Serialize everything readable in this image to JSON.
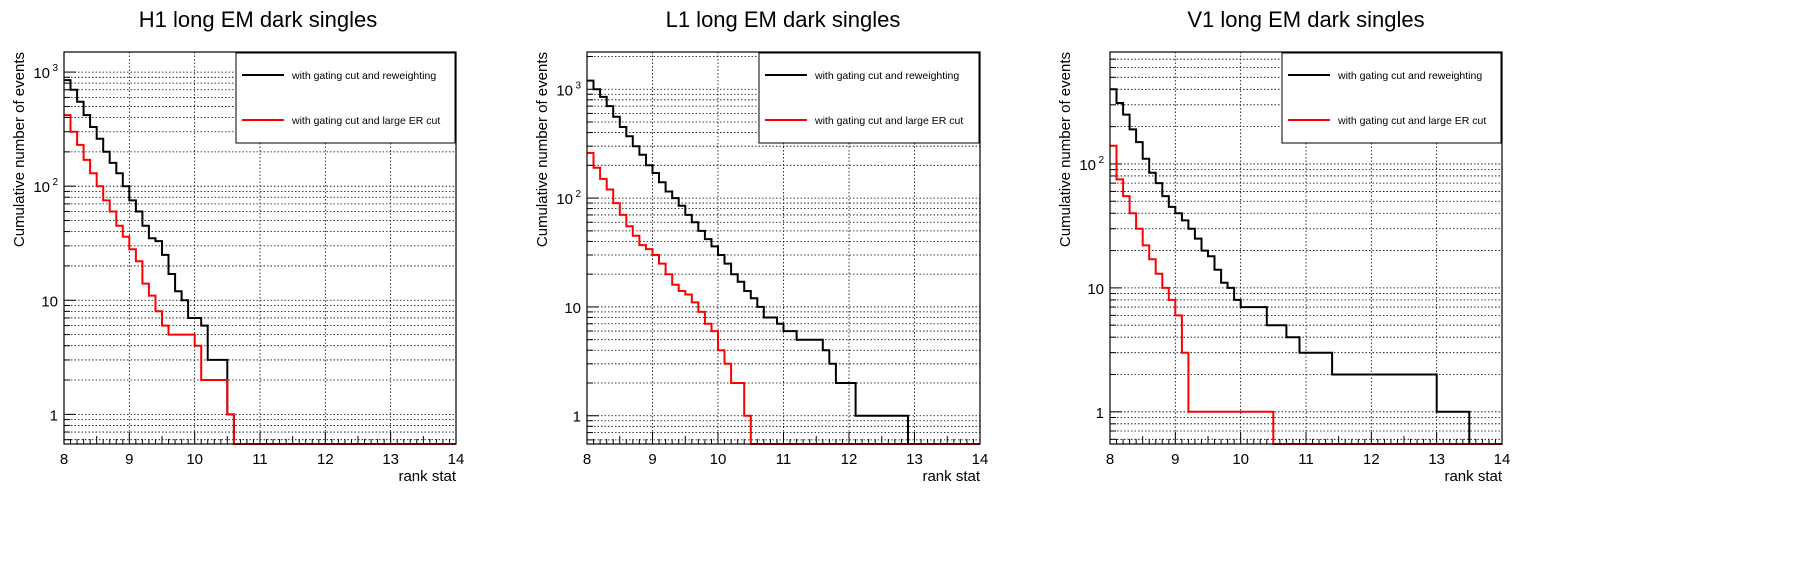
{
  "colors": {
    "series_black": "#000000",
    "series_red": "#ff0000",
    "grid": "#000000",
    "background": "#ffffff"
  },
  "chart_data": [
    {
      "type": "line",
      "step": true,
      "title": "H1 long EM dark singles",
      "xlabel": "rank stat",
      "ylabel": "Cumulative number of events",
      "xlim": [
        8,
        14
      ],
      "ylim": [
        0.55,
        1500
      ],
      "yscale": "log",
      "grid": true,
      "legend_placement": "top-right",
      "x_ticks": [
        "8",
        "9",
        "10",
        "11",
        "12",
        "13",
        "14"
      ],
      "y_ticks": [
        {
          "value": 1,
          "label": "1"
        },
        {
          "value": 10,
          "label": "10"
        },
        {
          "value": 100,
          "label": "10",
          "sup": "2"
        },
        {
          "value": 1000,
          "label": "10",
          "sup": "3"
        }
      ],
      "bin_width": 0.1,
      "series": [
        {
          "name": "with gating cut and reweighting",
          "color": "#000000",
          "values": [
            850,
            700,
            550,
            420,
            330,
            260,
            200,
            160,
            130,
            100,
            75,
            60,
            45,
            35,
            33,
            25,
            17,
            12,
            10,
            7,
            7,
            6,
            3,
            3,
            3,
            1,
            0,
            0,
            0,
            0,
            0,
            0,
            0,
            0,
            0,
            0,
            0,
            0,
            0,
            0,
            0,
            0,
            0,
            0,
            0,
            0,
            0,
            0,
            0,
            0,
            0,
            0,
            0,
            0,
            0,
            0,
            0,
            0,
            0,
            0
          ]
        },
        {
          "name": "with gating cut and large ER cut",
          "color": "#ff0000",
          "values": [
            420,
            300,
            230,
            170,
            130,
            100,
            75,
            60,
            45,
            36,
            28,
            22,
            14,
            11,
            8,
            6,
            5,
            5,
            5,
            5,
            4,
            2,
            2,
            2,
            2,
            1,
            0,
            0,
            0,
            0,
            0,
            0,
            0,
            0,
            0,
            0,
            0,
            0,
            0,
            0,
            0,
            0,
            0,
            0,
            0,
            0,
            0,
            0,
            0,
            0,
            0,
            0,
            0,
            0,
            0,
            0,
            0,
            0,
            0,
            0
          ]
        }
      ]
    },
    {
      "type": "line",
      "step": true,
      "title": "L1 long EM dark singles",
      "xlabel": "rank stat",
      "ylabel": "Cumulative number of events",
      "xlim": [
        8,
        14
      ],
      "ylim": [
        0.55,
        2200
      ],
      "yscale": "log",
      "grid": true,
      "legend_placement": "top-right",
      "x_ticks": [
        "8",
        "9",
        "10",
        "11",
        "12",
        "13",
        "14"
      ],
      "y_ticks": [
        {
          "value": 1,
          "label": "1"
        },
        {
          "value": 10,
          "label": "10"
        },
        {
          "value": 100,
          "label": "10",
          "sup": "2"
        },
        {
          "value": 1000,
          "label": "10",
          "sup": "3"
        }
      ],
      "bin_width": 0.1,
      "series": [
        {
          "name": "with gating cut and reweighting",
          "color": "#000000",
          "values": [
            1200,
            1000,
            850,
            700,
            560,
            450,
            370,
            300,
            250,
            200,
            170,
            140,
            115,
            100,
            85,
            70,
            60,
            50,
            42,
            36,
            30,
            25,
            20,
            17,
            14,
            12,
            10,
            8,
            8,
            7,
            6,
            6,
            5,
            5,
            5,
            5,
            4,
            3,
            2,
            2,
            2,
            1,
            1,
            1,
            1,
            1,
            1,
            1,
            1,
            0,
            0,
            0,
            0,
            0,
            0,
            0,
            0,
            0,
            0,
            0
          ]
        },
        {
          "name": "with gating cut and large ER cut",
          "color": "#ff0000",
          "values": [
            260,
            190,
            150,
            120,
            90,
            70,
            55,
            45,
            37,
            34,
            30,
            25,
            20,
            16,
            14,
            13,
            11,
            9,
            7,
            6,
            4,
            3,
            2,
            2,
            1,
            0,
            0,
            0,
            0,
            0,
            0,
            0,
            0,
            0,
            0,
            0,
            0,
            0,
            0,
            0,
            0,
            0,
            0,
            0,
            0,
            0,
            0,
            0,
            0,
            0,
            0,
            0,
            0,
            0,
            0,
            0,
            0,
            0,
            0,
            0
          ]
        }
      ]
    },
    {
      "type": "line",
      "step": true,
      "title": "V1 long EM dark singles",
      "xlabel": "rank stat",
      "ylabel": "Cumulative number of events",
      "xlim": [
        8,
        14
      ],
      "ylim": [
        0.55,
        800
      ],
      "yscale": "log",
      "grid": true,
      "legend_placement": "top-right",
      "x_ticks": [
        "8",
        "9",
        "10",
        "11",
        "12",
        "13",
        "14"
      ],
      "y_ticks": [
        {
          "value": 1,
          "label": "1"
        },
        {
          "value": 10,
          "label": "10"
        },
        {
          "value": 100,
          "label": "10",
          "sup": "2"
        }
      ],
      "bin_width": 0.1,
      "series": [
        {
          "name": "with gating cut and reweighting",
          "color": "#000000",
          "values": [
            400,
            310,
            250,
            190,
            150,
            110,
            85,
            70,
            55,
            45,
            40,
            35,
            30,
            25,
            20,
            18,
            14,
            11,
            10,
            8,
            7,
            7,
            7,
            7,
            5,
            5,
            5,
            4,
            4,
            3,
            3,
            3,
            3,
            3,
            2,
            2,
            2,
            2,
            2,
            2,
            2,
            2,
            2,
            2,
            2,
            2,
            2,
            2,
            2,
            2,
            1,
            1,
            1,
            1,
            1,
            0,
            0,
            0,
            0,
            0
          ]
        },
        {
          "name": "with gating cut and large ER cut",
          "color": "#ff0000",
          "values": [
            140,
            75,
            55,
            40,
            30,
            22,
            17,
            13,
            10,
            8,
            6,
            3,
            1,
            1,
            1,
            1,
            1,
            1,
            1,
            1,
            1,
            1,
            1,
            1,
            1,
            0,
            0,
            0,
            0,
            0,
            0,
            0,
            0,
            0,
            0,
            0,
            0,
            0,
            0,
            0,
            0,
            0,
            0,
            0,
            0,
            0,
            0,
            0,
            0,
            0,
            0,
            0,
            0,
            0,
            0,
            0,
            0,
            0,
            0,
            0
          ]
        }
      ]
    }
  ]
}
